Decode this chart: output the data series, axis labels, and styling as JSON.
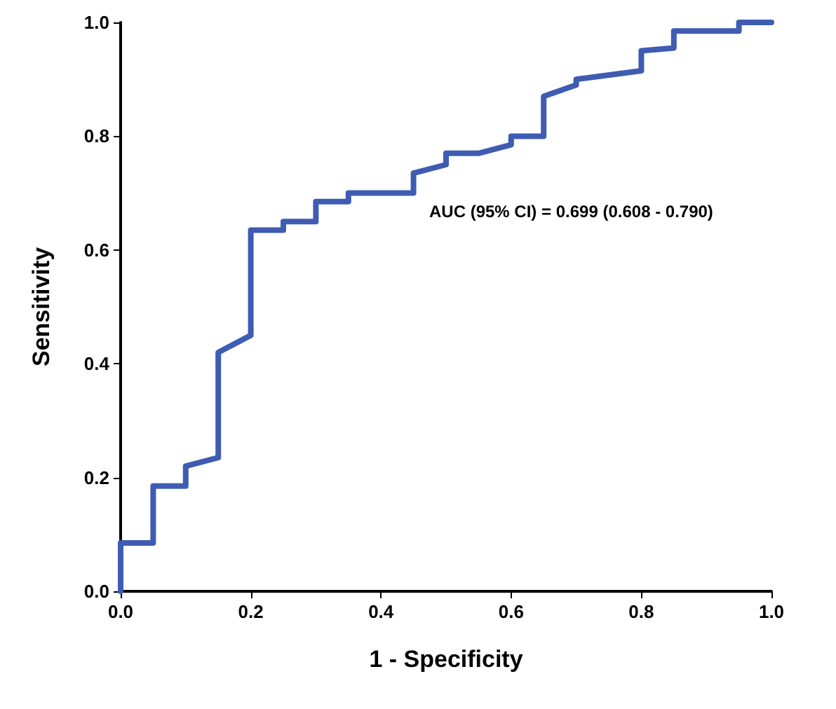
{
  "chart_data": {
    "type": "line",
    "xlabel": "1 - Specificity",
    "ylabel": "Sensitivity",
    "series": [
      {
        "color": "#3f5cb3",
        "x": [
          0,
          0,
          0.05,
          0.05,
          0.1,
          0.1,
          0.15,
          0.15,
          0.2,
          0.2,
          0.25,
          0.25,
          0.3,
          0.3,
          0.35,
          0.35,
          0.45,
          0.45,
          0.5,
          0.5,
          0.55,
          0.6,
          0.6,
          0.65,
          0.65,
          0.7,
          0.7,
          0.8,
          0.8,
          0.85,
          0.85,
          0.95,
          0.95,
          1.0
        ],
        "values": [
          0,
          0.085,
          0.085,
          0.185,
          0.185,
          0.22,
          0.235,
          0.42,
          0.45,
          0.635,
          0.635,
          0.65,
          0.65,
          0.685,
          0.685,
          0.7,
          0.7,
          0.735,
          0.75,
          0.77,
          0.77,
          0.785,
          0.8,
          0.8,
          0.87,
          0.89,
          0.9,
          0.915,
          0.95,
          0.955,
          0.985,
          0.985,
          1.0,
          1.0
        ]
      }
    ],
    "xlim": [
      0,
      1
    ],
    "ylim": [
      0,
      1
    ],
    "xticks": [
      {
        "value": 0,
        "label": "0.0"
      },
      {
        "value": 0.2,
        "label": "0.2"
      },
      {
        "value": 0.4,
        "label": "0.4"
      },
      {
        "value": 0.6,
        "label": "0.6"
      },
      {
        "value": 0.8,
        "label": "0.8"
      },
      {
        "value": 1,
        "label": "1.0"
      }
    ],
    "yticks": [
      {
        "value": 0,
        "label": "0.0"
      },
      {
        "value": 0.2,
        "label": "0.2"
      },
      {
        "value": 0.4,
        "label": "0.4"
      },
      {
        "value": 0.6,
        "label": "0.6"
      },
      {
        "value": 0.8,
        "label": "0.8"
      },
      {
        "value": 1,
        "label": "1.0"
      }
    ],
    "annotations": [
      "AUC (95% CI) = 0.699 (0.608 - 0.790)"
    ],
    "grid": false,
    "marker": "none",
    "line_style": "solid"
  }
}
